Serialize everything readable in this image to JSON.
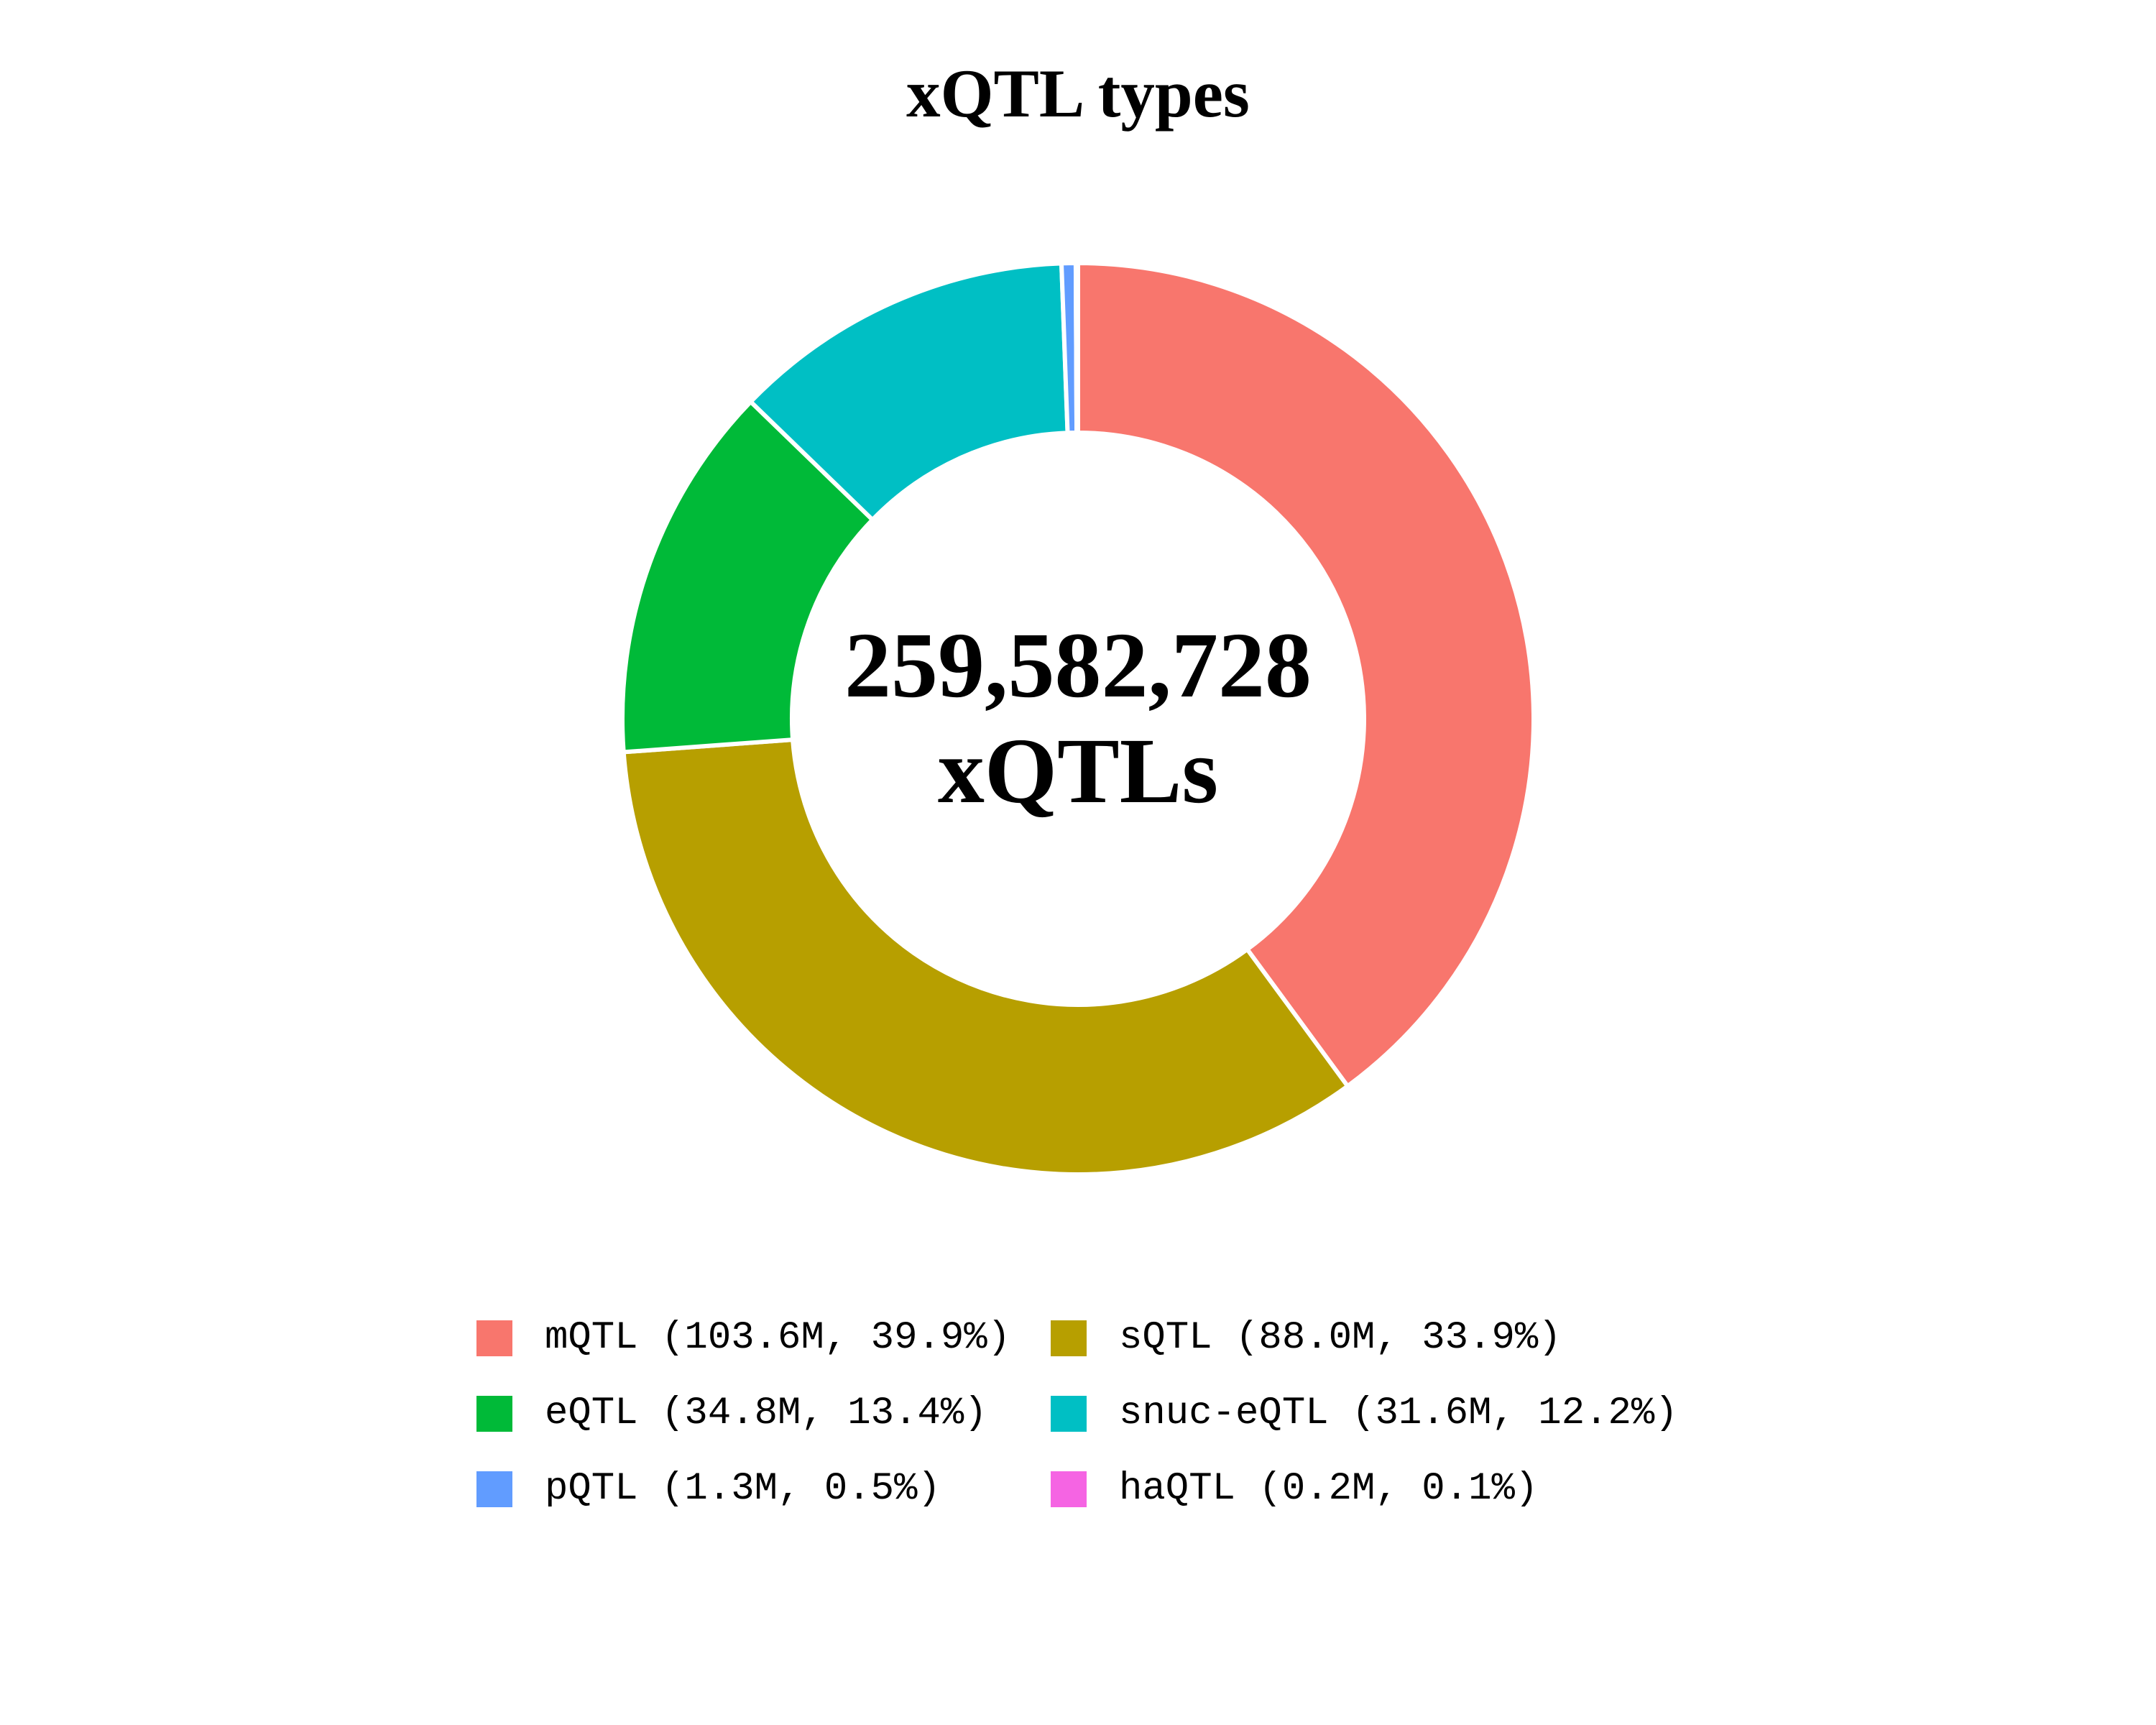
{
  "page": {
    "background_color": "#FFFFFF"
  },
  "title": "xQTL types",
  "center_label": {
    "line1": "259,582,728",
    "line2": "xQTLs"
  },
  "chart_data": {
    "type": "pie",
    "subtype": "donut",
    "title": "xQTL types",
    "start_angle_deg": 0,
    "direction": "clockwise",
    "slice_border_color": "#FFFFFF",
    "center_text": [
      "259,582,728",
      "xQTLs"
    ],
    "total_value": 259582728,
    "legend_position": "bottom",
    "legend_columns": 2,
    "series": [
      {
        "label": "mQTL",
        "value_millions": 103.6,
        "percent": 39.9,
        "color": "#F8766D",
        "legend_text": "mQTL (103.6M, 39.9%)"
      },
      {
        "label": "sQTL",
        "value_millions": 88.0,
        "percent": 33.9,
        "color": "#B79F00",
        "legend_text": "sQTL (88.0M, 33.9%)"
      },
      {
        "label": "eQTL",
        "value_millions": 34.8,
        "percent": 13.4,
        "color": "#00BA38",
        "legend_text": "eQTL (34.8M, 13.4%)"
      },
      {
        "label": "snuc-eQTL",
        "value_millions": 31.6,
        "percent": 12.2,
        "color": "#00BFC4",
        "legend_text": "snuc-eQTL (31.6M, 12.2%)"
      },
      {
        "label": "pQTL",
        "value_millions": 1.3,
        "percent": 0.5,
        "color": "#619CFF",
        "legend_text": "pQTL (1.3M, 0.5%)"
      },
      {
        "label": "haQTL",
        "value_millions": 0.2,
        "percent": 0.1,
        "color": "#F564E3",
        "legend_text": "haQTL (0.2M, 0.1%)"
      }
    ],
    "geometry": {
      "center_x": 1500,
      "center_y": 1000,
      "outer_radius": 634,
      "inner_radius": 398
    }
  }
}
